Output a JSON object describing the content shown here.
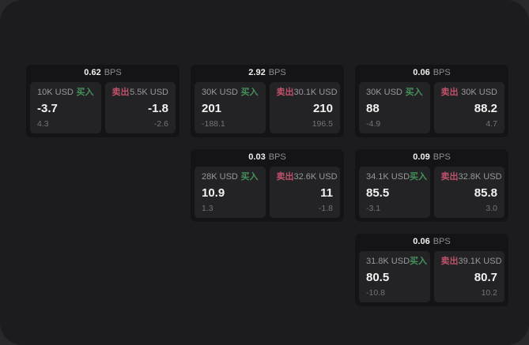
{
  "page": {
    "bps_suffix": "BPS",
    "buy_label": "买入",
    "sell_label": "卖出"
  },
  "colors": {
    "page_background": "#29292c",
    "surface_background": "#1c1c1e",
    "card_background": "#141416",
    "panel_background": "#232326",
    "primary_text": "#f2f2f2",
    "muted_text": "#98989d",
    "dim_text": "#737378",
    "buy_green": "#45915a",
    "sell_red": "#bd5268"
  },
  "columns": [
    {
      "cards": [
        {
          "bps": "0.62",
          "buy": {
            "amount": "10K USD",
            "price": "-3.7",
            "delta": "4.3"
          },
          "sell": {
            "amount": "5.5K USD",
            "price": "-1.8",
            "delta": "-2.6"
          }
        }
      ]
    },
    {
      "cards": [
        {
          "bps": "2.92",
          "buy": {
            "amount": "30K USD",
            "price": "201",
            "delta": "-188.1"
          },
          "sell": {
            "amount": "30.1K USD",
            "price": "210",
            "delta": "196.5"
          }
        },
        {
          "bps": "0.03",
          "buy": {
            "amount": "28K USD",
            "price": "10.9",
            "delta": "1.3"
          },
          "sell": {
            "amount": "32.6K USD",
            "price": "11",
            "delta": "-1.8"
          }
        }
      ]
    },
    {
      "cards": [
        {
          "bps": "0.06",
          "buy": {
            "amount": "30K USD",
            "price": "88",
            "delta": "-4.9"
          },
          "sell": {
            "amount": "30K USD",
            "price": "88.2",
            "delta": "4.7"
          }
        },
        {
          "bps": "0.09",
          "buy": {
            "amount": "34.1K USD",
            "price": "85.5",
            "delta": "-3.1"
          },
          "sell": {
            "amount": "32.8K USD",
            "price": "85.8",
            "delta": "3.0"
          }
        },
        {
          "bps": "0.06",
          "buy": {
            "amount": "31.8K USD",
            "price": "80.5",
            "delta": "-10.8"
          },
          "sell": {
            "amount": "39.1K USD",
            "price": "80.7",
            "delta": "10.2"
          }
        }
      ]
    }
  ]
}
